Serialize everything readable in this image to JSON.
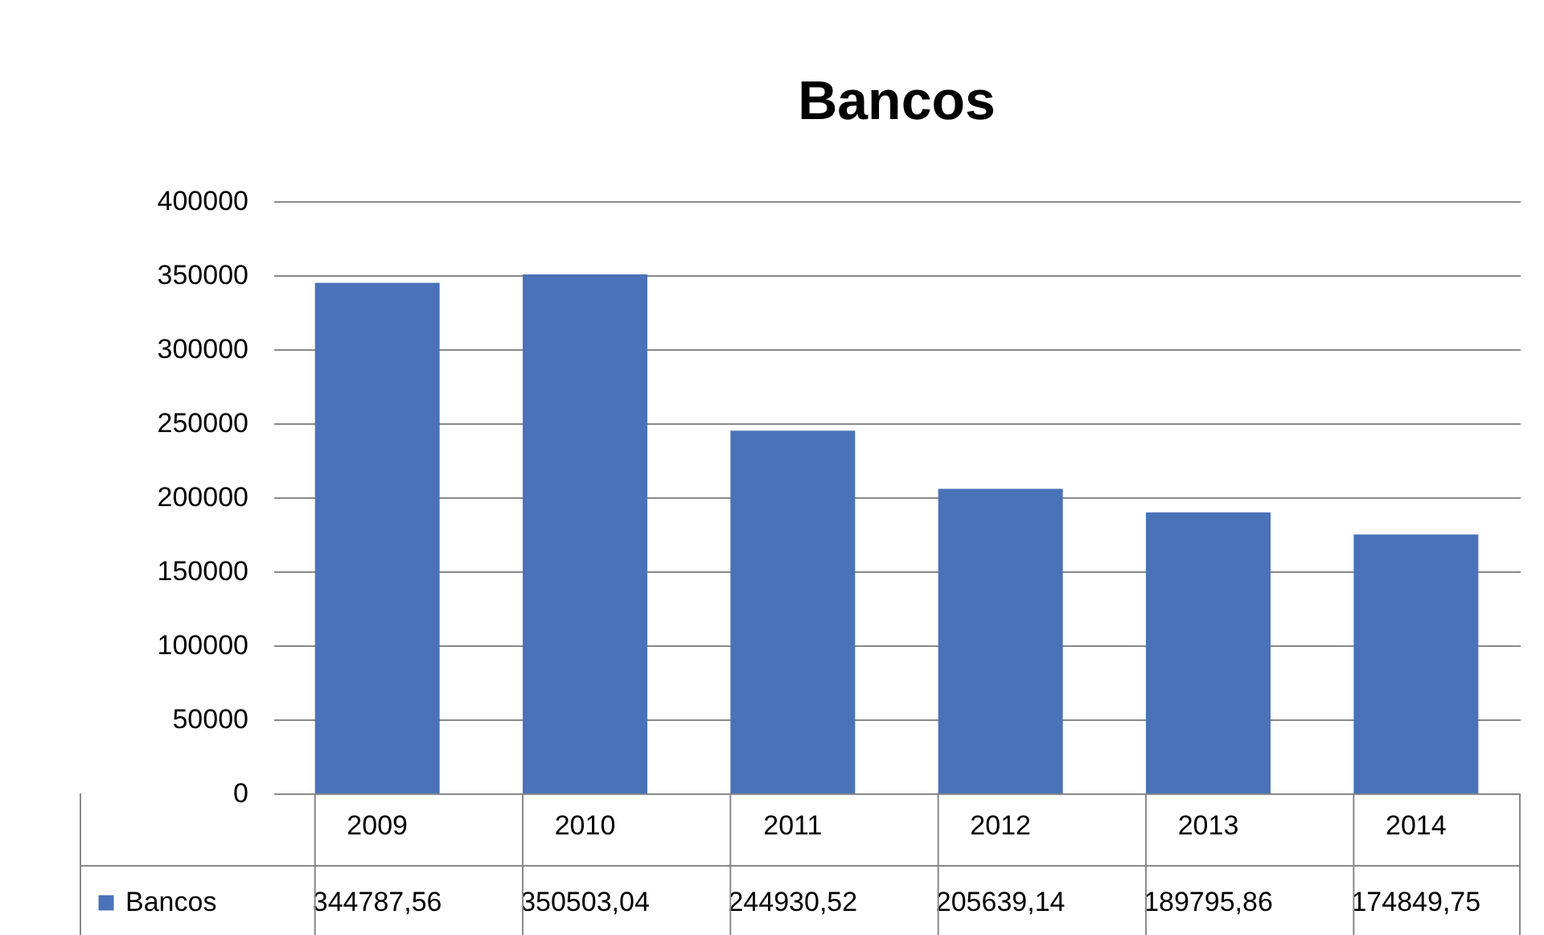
{
  "chart_data": {
    "type": "bar",
    "title": "Bancos",
    "categories": [
      "2009",
      "2010",
      "2011",
      "2012",
      "2013",
      "2014"
    ],
    "series": [
      {
        "name": "Bancos",
        "color": "#4a72b8",
        "values": [
          344787.56,
          350503.04,
          244930.52,
          205639.14,
          189795.86,
          174849.75
        ],
        "value_labels": [
          "344787,56",
          "350503,04",
          "244930,52",
          "205639,14",
          "189795,86",
          "174849,75"
        ]
      }
    ],
    "ylim": [
      0,
      400000
    ],
    "yticks": [
      0,
      50000,
      100000,
      150000,
      200000,
      250000,
      300000,
      350000,
      400000
    ],
    "grid": "y",
    "legend": "bottom"
  }
}
